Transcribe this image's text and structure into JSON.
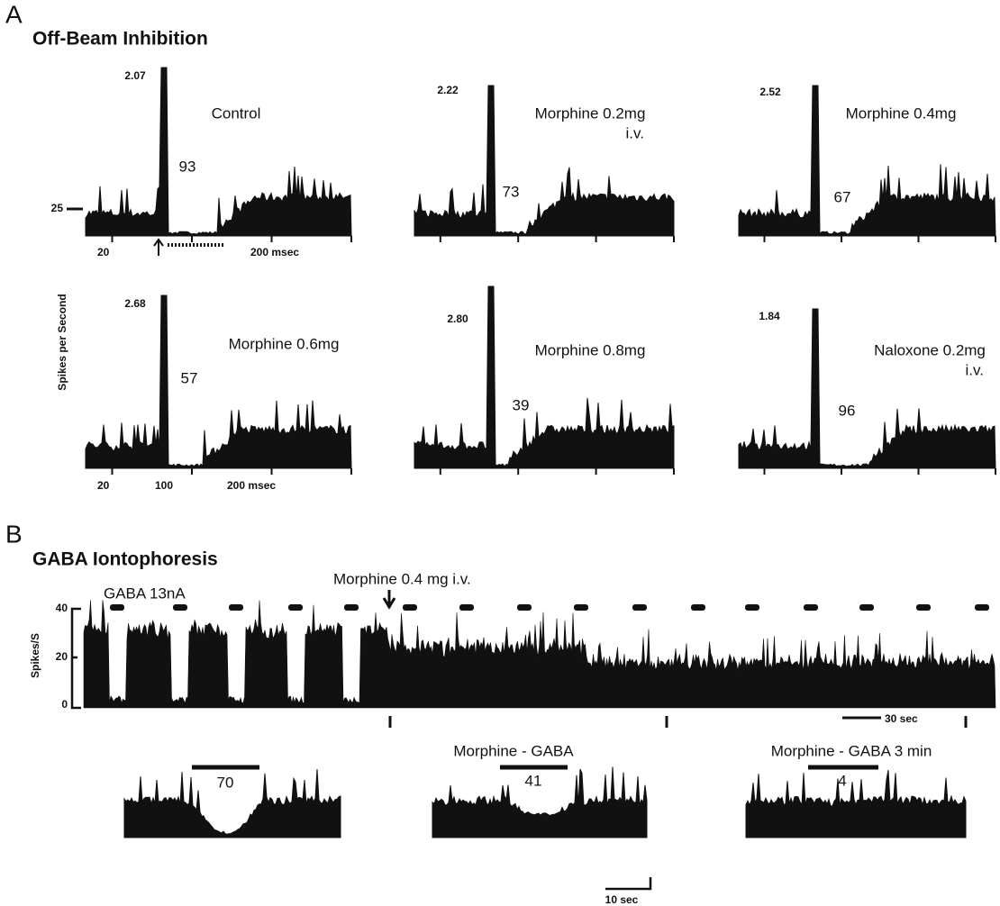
{
  "panel_a": {
    "letter": "A",
    "title": "Off-Beam Inhibition",
    "y_label": "Spikes per Second",
    "y_tick": "25",
    "x_labels_top": [
      "20",
      "200 msec"
    ],
    "x_labels_bottom": [
      "20",
      "100",
      "200 msec"
    ],
    "plots": [
      {
        "peak": "2.07",
        "label": "Control",
        "count": "93"
      },
      {
        "peak": "2.22",
        "label": "Morphine 0.2mg",
        "sublabel": "i.v.",
        "count": "73"
      },
      {
        "peak": "2.52",
        "label": "Morphine 0.4mg",
        "count": "67"
      },
      {
        "peak": "2.68",
        "label": "Morphine 0.6mg",
        "count": "57"
      },
      {
        "peak": "2.80",
        "label": "Morphine 0.8mg",
        "count": "39"
      },
      {
        "peak": "1.84",
        "label": "Naloxone 0.2mg",
        "sublabel": "i.v.",
        "count": "96"
      }
    ]
  },
  "panel_b": {
    "letter": "B",
    "title": "GABA Iontophoresis",
    "drug_label": "Morphine 0.4 mg i.v.",
    "gaba_label": "GABA 13nA",
    "y_label": "Spikes/S",
    "y_ticks": [
      "40",
      "20",
      "0"
    ],
    "time_scale": "30 sec",
    "insets": [
      {
        "count": "70"
      },
      {
        "label": "Morphine - GABA",
        "count": "41",
        "time_scale": "10 sec"
      },
      {
        "label": "Morphine - GABA 3 min",
        "count": "4"
      }
    ]
  }
}
